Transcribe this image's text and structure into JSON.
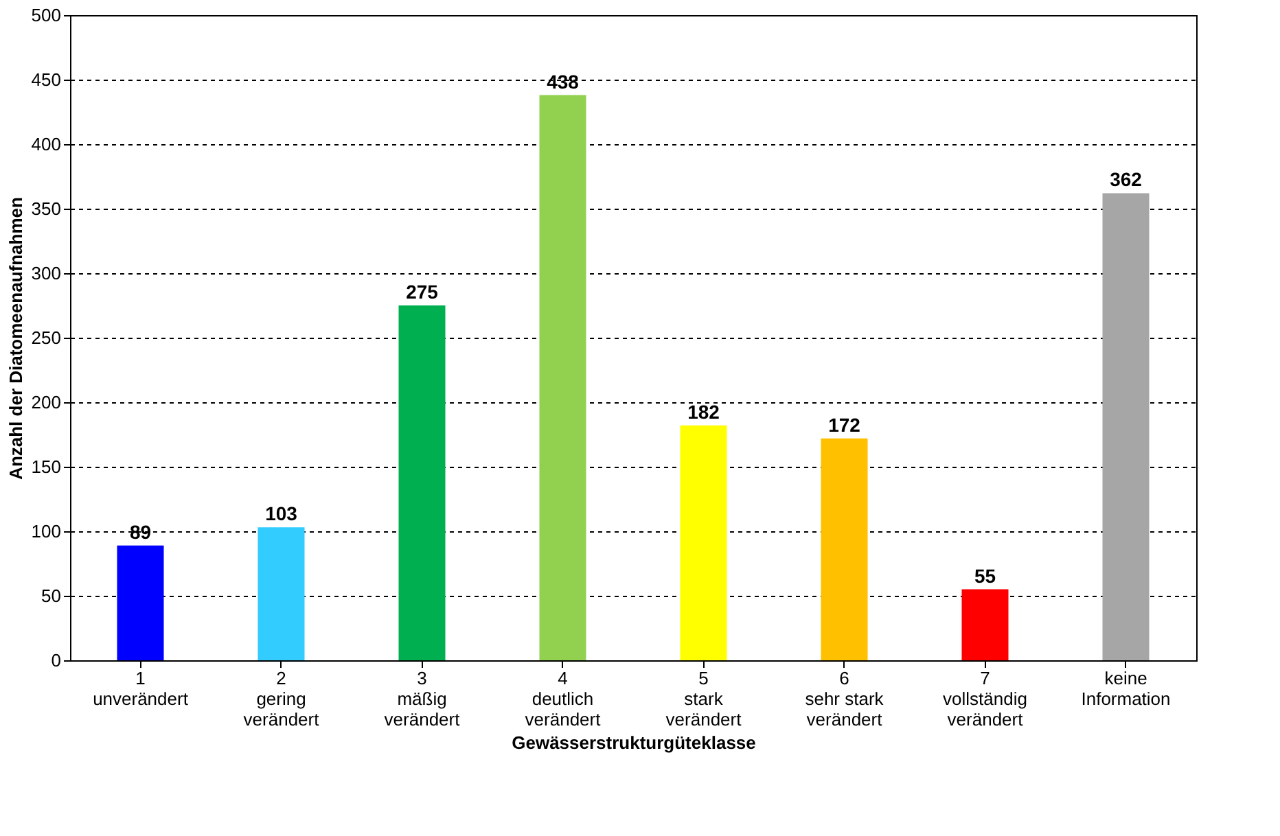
{
  "chart_data": {
    "type": "bar",
    "categories": [
      "1\nunverändert",
      "2\ngering\nverändert",
      "3\nmäßig\nverändert",
      "4\ndeutlich\nverändert",
      "5\nstark\nverändert",
      "6\nsehr stark\nverändert",
      "7\nvollständig\nverändert",
      "keine\nInformation"
    ],
    "values": [
      89,
      103,
      275,
      438,
      182,
      172,
      55,
      362
    ],
    "colors": [
      "#0000ff",
      "#33ccff",
      "#00b050",
      "#92d050",
      "#ffff00",
      "#ffc000",
      "#ff0000",
      "#a6a6a6"
    ],
    "xlabel": "Gewässerstrukturgüteklasse",
    "ylabel": "Anzahl der Diatomeenaufnahmen",
    "ylim": [
      0,
      500
    ],
    "yticks": [
      0,
      50,
      100,
      150,
      200,
      250,
      300,
      350,
      400,
      450,
      500
    ],
    "grid": "y",
    "data_labels": true
  }
}
